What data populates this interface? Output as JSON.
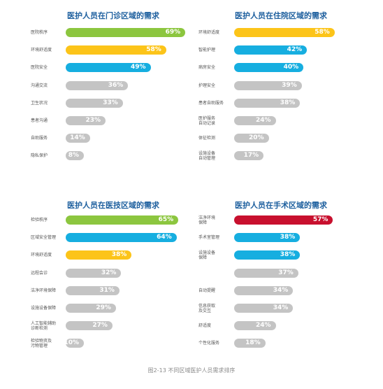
{
  "colors": {
    "green": "#8cc63f",
    "yellow": "#fcc419",
    "blue": "#16aee0",
    "red": "#c8102e",
    "gray": "#c4c4c4",
    "title": "#1d5f9e"
  },
  "caption": "图2-13 不同区域医护人员需求排序",
  "chart_data": [
    {
      "type": "bar",
      "orientation": "horizontal",
      "title": "医护人员在门诊区域的需求",
      "categories": [
        "医院秩序",
        "环境舒适度",
        "医院安全",
        "沟通交流",
        "卫生状况",
        "患者沟通",
        "自助服务",
        "隐私保护"
      ],
      "values": [
        69,
        58,
        49,
        36,
        33,
        23,
        14,
        8
      ],
      "value_labels": [
        "69%",
        "58%",
        "49%",
        "36%",
        "33%",
        "23%",
        "14%",
        "8%"
      ],
      "colors": [
        "green",
        "yellow",
        "blue",
        "gray",
        "gray",
        "gray",
        "gray",
        "gray"
      ],
      "xlim": [
        0,
        100
      ]
    },
    {
      "type": "bar",
      "orientation": "horizontal",
      "title": "医护人员在住院区域的需求",
      "categories": [
        "环境舒适度",
        "智能护理",
        "病房安全",
        "护理安全",
        "患者自助服务",
        "医护服务 自动记录",
        "体征检测",
        "设施设备 自动管理"
      ],
      "values": [
        58,
        42,
        40,
        39,
        38,
        24,
        20,
        17
      ],
      "value_labels": [
        "58%",
        "42%",
        "40%",
        "39%",
        "38%",
        "24%",
        "20%",
        "17%"
      ],
      "colors": [
        "yellow",
        "blue",
        "blue",
        "gray",
        "gray",
        "gray",
        "gray",
        "gray"
      ],
      "xlim": [
        0,
        100
      ]
    },
    {
      "type": "bar",
      "orientation": "horizontal",
      "title": "医护人员在医技区域的需求",
      "categories": [
        "检验秩序",
        "区域安全管理",
        "环境舒适度",
        "远程会诊",
        "洁净环境保障",
        "设施设备保障",
        "人工智能辅助 诊断检测",
        "检验物资及 污物管理"
      ],
      "values": [
        65,
        64,
        38,
        32,
        31,
        29,
        27,
        10
      ],
      "value_labels": [
        "65%",
        "64%",
        "38%",
        "32%",
        "31%",
        "29%",
        "27%",
        "10%"
      ],
      "colors": [
        "green",
        "blue",
        "yellow",
        "gray",
        "gray",
        "gray",
        "gray",
        "gray"
      ],
      "xlim": [
        0,
        100
      ]
    },
    {
      "type": "bar",
      "orientation": "horizontal",
      "title": "医护人员在手术区域的需求",
      "categories": [
        "洁净环境 保障",
        "手术室管理",
        "设施设备 保障",
        "",
        "自动提醒",
        "信息获取 及交互",
        "舒适度",
        "个性化服务"
      ],
      "values": [
        57,
        38,
        38,
        37,
        34,
        34,
        24,
        18
      ],
      "value_labels": [
        "57%",
        "38%",
        "38%",
        "37%",
        "34%",
        "34%",
        "24%",
        "18%"
      ],
      "colors": [
        "red",
        "blue",
        "blue",
        "gray",
        "gray",
        "gray",
        "gray",
        "gray"
      ],
      "xlim": [
        0,
        100
      ]
    }
  ]
}
